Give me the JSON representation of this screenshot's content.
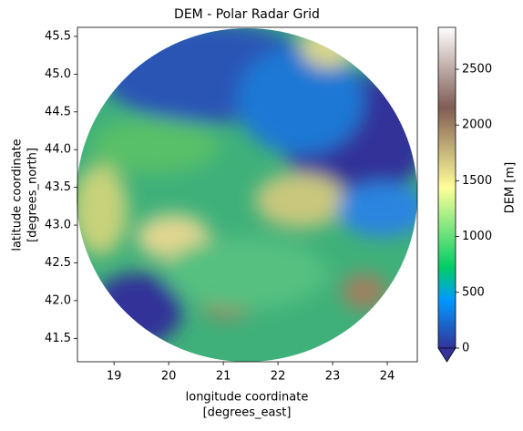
{
  "chart_data": {
    "type": "image",
    "title": "DEM - Polar Radar Grid",
    "xlabel": [
      "longitude coordinate",
      "[degrees_east]"
    ],
    "ylabel": [
      "latitude coordinate",
      "[degrees_north]"
    ],
    "xlim": [
      18.33,
      24.55
    ],
    "xticks": [
      19,
      20,
      21,
      22,
      23,
      24
    ],
    "ylim": [
      41.19,
      45.62
    ],
    "yticks": [
      41.5,
      {
        "value": 42,
        "label": "42.0"
      },
      42.5,
      {
        "value": 43,
        "label": "43.0"
      },
      43.5,
      {
        "value": 44,
        "label": "44.0"
      },
      44.5,
      {
        "value": 45,
        "label": "45.0"
      },
      45.5
    ],
    "colormap": "terrain",
    "colorbar": {
      "label": "DEM [m]",
      "lim": [
        0,
        2876
      ],
      "ticks": [
        0,
        500,
        1000,
        1500,
        2000,
        2500
      ]
    }
  }
}
